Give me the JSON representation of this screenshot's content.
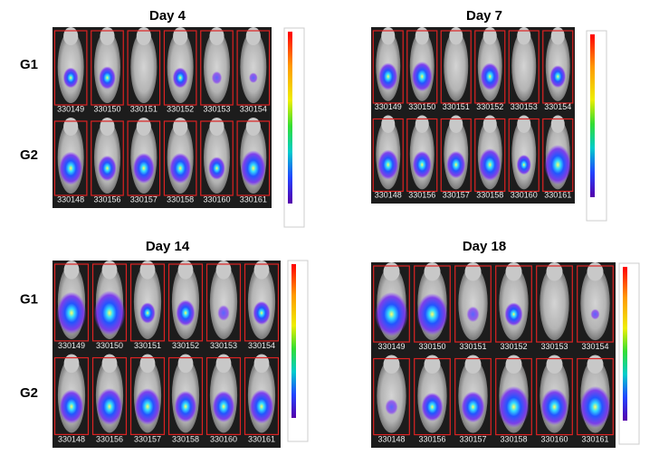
{
  "panels": [
    {
      "title": "Day 4",
      "rows": [
        {
          "label": "G1",
          "mice": [
            "330149",
            "330150",
            "330151",
            "330152",
            "330153",
            "330154"
          ]
        },
        {
          "label": "G2",
          "mice": [
            "330148",
            "330156",
            "330157",
            "330158",
            "330160",
            "330161"
          ]
        }
      ]
    },
    {
      "title": "Day 7",
      "rows": [
        {
          "mice": [
            "330149",
            "330150",
            "330151",
            "330152",
            "330153",
            "330154"
          ]
        },
        {
          "mice": [
            "330148",
            "330156",
            "330157",
            "330158",
            "330160",
            "330161"
          ]
        }
      ]
    },
    {
      "title": "Day 14",
      "rows": [
        {
          "label": "G1",
          "mice": [
            "330149",
            "330150",
            "330151",
            "330152",
            "330153",
            "330154"
          ]
        },
        {
          "label": "G2",
          "mice": [
            "330148",
            "330156",
            "330157",
            "330158",
            "330160",
            "330161"
          ]
        }
      ]
    },
    {
      "title": "Day 18",
      "rows": [
        {
          "mice": [
            "330149",
            "330150",
            "330151",
            "330152",
            "330153",
            "330154"
          ]
        },
        {
          "mice": [
            "330148",
            "330156",
            "330157",
            "330158",
            "330160",
            "330161"
          ]
        }
      ]
    }
  ]
}
